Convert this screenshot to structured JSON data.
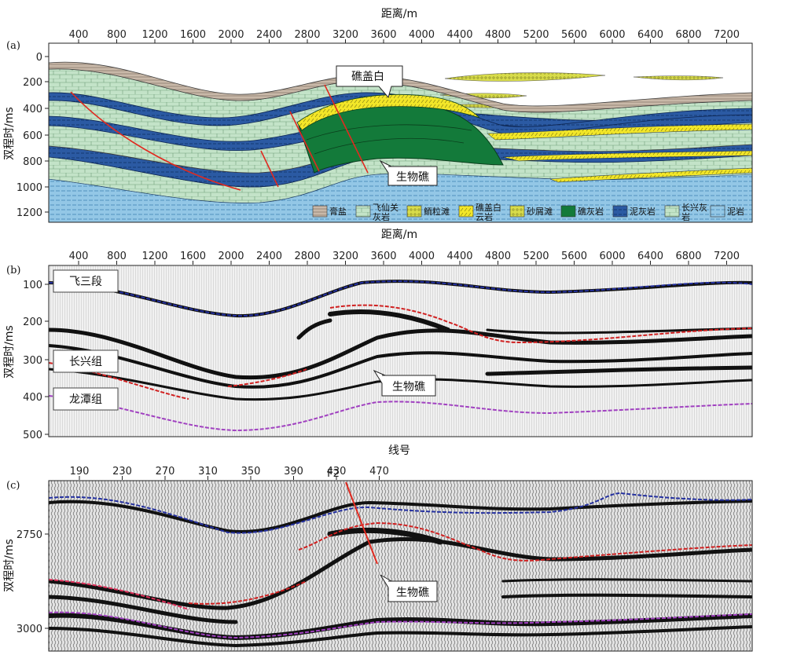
{
  "panel_a": {
    "letter": "(a)",
    "top_axis_title": "距离/m",
    "y_axis_title": "双程时/ms",
    "x_ticks": [
      "400",
      "800",
      "1200",
      "1600",
      "2000",
      "2400",
      "2800",
      "3200",
      "3600",
      "4000",
      "4400",
      "4800",
      "5200",
      "5600",
      "6000",
      "6400",
      "6800",
      "7200"
    ],
    "y_ticks": [
      "0",
      "200",
      "400",
      "600",
      "800",
      "1000",
      "1200"
    ],
    "callouts": {
      "reef_cap": "礁盖白",
      "bioherm": "生物礁"
    },
    "legend": [
      {
        "label": "膏盐",
        "swatch": "gypsum"
      },
      {
        "label": "飞仙关灰岩",
        "swatch": "feixianguan"
      },
      {
        "label": "鲕粒滩",
        "swatch": "oolite"
      },
      {
        "label": "礁盖白云岩",
        "swatch": "reefcap"
      },
      {
        "label": "砂屑滩",
        "swatch": "sandbank"
      },
      {
        "label": "礁灰岩",
        "swatch": "reef"
      },
      {
        "label": "泥灰岩",
        "swatch": "marl"
      },
      {
        "label": "长兴灰岩",
        "swatch": "changxing"
      },
      {
        "label": "泥岩",
        "swatch": "mudstone"
      }
    ],
    "colors": {
      "limestone": "#bfe1c4",
      "marl": "#2b5aa3",
      "reef": "#137a3a",
      "reefcap": "#f2e628",
      "oolite": "#d8dc4a",
      "mudstone": "#93c7e6",
      "fault": "#e02a20"
    }
  },
  "panel_b": {
    "letter": "(b)",
    "top_axis_title": "距离/m",
    "y_axis_title": "双程时/ms",
    "x_ticks": [
      "400",
      "800",
      "1200",
      "1600",
      "2000",
      "2400",
      "2800",
      "3200",
      "3600",
      "4000",
      "4400",
      "4800",
      "5200",
      "5600",
      "6000",
      "6400",
      "6800",
      "7200"
    ],
    "y_ticks": [
      "100",
      "200",
      "300",
      "400",
      "500"
    ],
    "labels": {
      "fei3": "飞三段",
      "changxing": "长兴组",
      "longtan": "龙潭组",
      "bioherm": "生物礁"
    }
  },
  "panel_c": {
    "letter": "(c)",
    "top_axis_title": "线号",
    "y_axis_title": "双程时/ms",
    "x_ticks": [
      "190",
      "230",
      "270",
      "310",
      "350",
      "390",
      "430",
      "470"
    ],
    "y_ticks": [
      "2750",
      "3000"
    ],
    "fault_label": "F2",
    "bioherm_label": "生物礁"
  }
}
